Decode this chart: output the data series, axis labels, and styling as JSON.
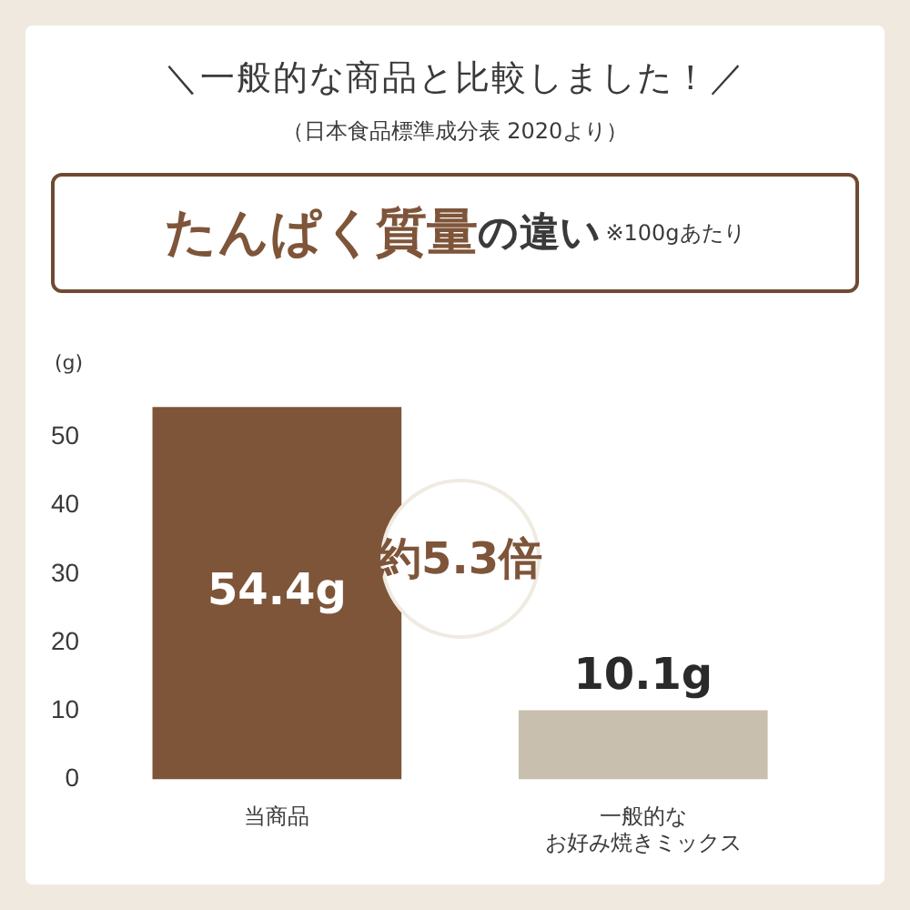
{
  "chart_data": {
    "type": "bar",
    "title": "＼一般的な商品と比較しました！／",
    "subtitle": "（日本食品標準成分表 2020より）",
    "ylabel": "(g)",
    "annotations": [
      "たんぱく質量",
      "の違い",
      "※100gあたり",
      "約5.3倍"
    ],
    "categories": [
      "当商品",
      "一般的なお好み焼きミックス"
    ],
    "values": [
      54.4,
      10.1
    ],
    "colors": [
      "#7e5539",
      "#c8bfae"
    ],
    "value_labels": [
      "54.4g",
      "10.1g"
    ],
    "ylim": [
      0,
      55
    ],
    "yticks": [
      0,
      10,
      20,
      30,
      40,
      50
    ],
    "grid": false,
    "legend": false
  }
}
